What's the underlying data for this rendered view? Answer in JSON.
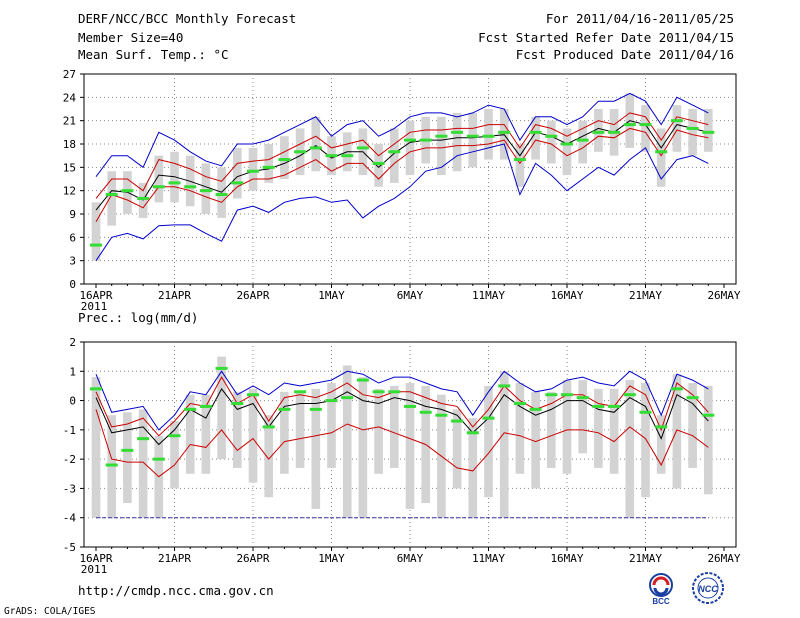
{
  "header": {
    "title": "DERF/NCC/BCC Monthly Forecast",
    "member_size": "Member Size=40",
    "variable": "Mean Surf. Temp.: °C",
    "period": "For 2011/04/16-2011/05/25",
    "start_date": "Fcst Started Refer Date 2011/04/15",
    "produced_date": "Fcst Produced Date 2011/04/16"
  },
  "footer": {
    "url": "http://cmdp.ncc.cma.gov.cn",
    "credit": "GrADS: COLA/IGES",
    "logo_bcc": "BCC",
    "logo_ncc": "NCC"
  },
  "chart_data": [
    {
      "type": "line",
      "title": "Mean Surf. Temp.: °C",
      "ylim": [
        0,
        27
      ],
      "yticks": [
        0,
        3,
        6,
        9,
        12,
        15,
        18,
        21,
        24,
        27
      ],
      "xtick_labels": [
        "16APR",
        "21APR",
        "26APR",
        "1MAY",
        "6MAY",
        "11MAY",
        "16MAY",
        "21MAY",
        "26MAY"
      ],
      "xtick_days": [
        0,
        5,
        10,
        15,
        20,
        25,
        30,
        35,
        40
      ],
      "year_label": "2011",
      "x": [
        0,
        1,
        2,
        3,
        4,
        5,
        6,
        7,
        8,
        9,
        10,
        11,
        12,
        13,
        14,
        15,
        16,
        17,
        18,
        19,
        20,
        21,
        22,
        23,
        24,
        25,
        26,
        27,
        28,
        29,
        30,
        31,
        32,
        33,
        34,
        35,
        36,
        37,
        38,
        39
      ],
      "series": [
        {
          "name": "max",
          "color": "#0000cc",
          "values": [
            13.8,
            16.5,
            16.5,
            15,
            19.5,
            18.5,
            17,
            15.8,
            15.2,
            18,
            18,
            18.5,
            19.5,
            20.5,
            21.5,
            19,
            20.5,
            21,
            19,
            20,
            21.5,
            22,
            22,
            21.5,
            22,
            23,
            22.5,
            18.5,
            21.5,
            21.5,
            20.5,
            21.5,
            23.5,
            23.5,
            24.5,
            23.5,
            20.5,
            24,
            23,
            22
          ]
        },
        {
          "name": "p90",
          "color": "#cc0000",
          "values": [
            11,
            13.5,
            13.5,
            12,
            16,
            15.5,
            14.8,
            13.8,
            13.2,
            15.5,
            15.8,
            16,
            17,
            18,
            19,
            17.5,
            18,
            18.5,
            16.5,
            18,
            19.5,
            19.8,
            19.8,
            20,
            20,
            20.5,
            20.5,
            17.5,
            20.5,
            20,
            19,
            20,
            21,
            20.5,
            22,
            21.5,
            18.5,
            21.5,
            21,
            20.5
          ]
        },
        {
          "name": "mean",
          "color": "#000000",
          "values": [
            9.5,
            12,
            11.8,
            10.8,
            14,
            13.8,
            13.2,
            12.5,
            11.8,
            13.8,
            14.5,
            14.8,
            15.5,
            16.5,
            17.8,
            16.2,
            17,
            17,
            15,
            16.8,
            18.2,
            18.5,
            18.5,
            18.8,
            18.8,
            19,
            19.2,
            16.5,
            19.5,
            19,
            18,
            19,
            20,
            19.5,
            21,
            20.5,
            17.5,
            20.5,
            20,
            19.5
          ]
        },
        {
          "name": "p10",
          "color": "#cc0000",
          "values": [
            8,
            11.5,
            10.8,
            9.8,
            12.5,
            12.5,
            12,
            11.2,
            10.5,
            12.5,
            13.5,
            13.5,
            14,
            15,
            16,
            14.5,
            15.5,
            15.5,
            13.5,
            15.5,
            17,
            17.5,
            17.5,
            17.8,
            17.8,
            18,
            18.5,
            15.5,
            18.5,
            18,
            16.5,
            17.5,
            19,
            18.8,
            20,
            19.5,
            16.5,
            19.8,
            19.2,
            18.8
          ]
        },
        {
          "name": "min",
          "color": "#0000cc",
          "values": [
            3,
            6,
            6.5,
            5.8,
            7.5,
            7.6,
            7.6,
            6.5,
            5.5,
            9.5,
            10,
            9.2,
            10.5,
            11,
            11.2,
            10.5,
            10.8,
            8.5,
            10,
            11,
            12.5,
            14.5,
            15,
            16.5,
            17,
            17.5,
            18,
            11.5,
            15.5,
            14,
            12,
            13.5,
            15,
            14,
            16,
            17.5,
            13.5,
            16,
            16.5,
            15.5
          ]
        }
      ],
      "box_series": {
        "name": "member spread",
        "color": "#d3d3d3",
        "lows": [
          3,
          7.5,
          9,
          8.5,
          10.5,
          10.5,
          10,
          9,
          8.5,
          11,
          12,
          13,
          13.5,
          14,
          14.5,
          14,
          14.5,
          14,
          12.5,
          13,
          14,
          15.5,
          14,
          14.5,
          15,
          16,
          16,
          12.5,
          16,
          15.5,
          14,
          15.5,
          17,
          16.5,
          17.5,
          17,
          12.5,
          17,
          16.5,
          17
        ]
      },
      "box_highs": [
        10.5,
        14.5,
        14.5,
        13,
        16.5,
        17,
        16.5,
        15.5,
        15,
        17.5,
        17.5,
        18,
        19,
        20,
        21.5,
        19,
        19.5,
        20,
        18,
        20,
        21,
        21.5,
        21.5,
        22,
        22,
        22.5,
        22.5,
        18,
        21.5,
        21,
        20,
        21,
        22.5,
        22.5,
        24.5,
        23,
        20,
        23,
        22.5,
        22.5
      ],
      "control_run": {
        "name": "control",
        "color": "#33dd33",
        "values": [
          5,
          11.5,
          12,
          11,
          12.5,
          13,
          12.5,
          12,
          11.5,
          13,
          14.5,
          15,
          16,
          17,
          17.5,
          16.5,
          16.5,
          17.5,
          15.5,
          17,
          18.5,
          18.5,
          19,
          19.5,
          19,
          19,
          19.5,
          16,
          19.5,
          19,
          18,
          18.5,
          19.5,
          19.5,
          20.5,
          20.5,
          17,
          21,
          20,
          19.5
        ]
      }
    },
    {
      "type": "line",
      "title": "Prec.: log(mm/d)",
      "ylim": [
        -5,
        2
      ],
      "yticks": [
        -5,
        -4,
        -3,
        -2,
        -1,
        0,
        1,
        2
      ],
      "xtick_labels": [
        "16APR",
        "21APR",
        "26APR",
        "1MAY",
        "6MAY",
        "11MAY",
        "16MAY",
        "21MAY",
        "26MAY"
      ],
      "xtick_days": [
        0,
        5,
        10,
        15,
        20,
        25,
        30,
        35,
        40
      ],
      "year_label": "2011",
      "x": [
        0,
        1,
        2,
        3,
        4,
        5,
        6,
        7,
        8,
        9,
        10,
        11,
        12,
        13,
        14,
        15,
        16,
        17,
        18,
        19,
        20,
        21,
        22,
        23,
        24,
        25,
        26,
        27,
        28,
        29,
        30,
        31,
        32,
        33,
        34,
        35,
        36,
        37,
        38,
        39
      ],
      "series": [
        {
          "name": "max",
          "color": "#0000cc",
          "values": [
            0.9,
            -0.4,
            -0.3,
            -0.2,
            -1,
            -0.5,
            0.3,
            0.2,
            1,
            0.2,
            0.5,
            0.2,
            0.6,
            0.5,
            0.6,
            0.7,
            1,
            0.9,
            0.6,
            0.8,
            0.8,
            0.6,
            0.4,
            0.3,
            -0.5,
            0.3,
            1,
            0.6,
            0.3,
            0.4,
            0.7,
            0.8,
            0.6,
            0.5,
            1,
            0.7,
            -0.5,
            0.9,
            0.7,
            0.4
          ]
        },
        {
          "name": "p90",
          "color": "#cc0000",
          "values": [
            0.3,
            -0.9,
            -0.8,
            -0.6,
            -1.2,
            -0.7,
            -0.1,
            -0.2,
            0.8,
            -0.1,
            0.2,
            -0.7,
            0.1,
            0.2,
            0.1,
            0.3,
            0.6,
            0.2,
            0.1,
            0.3,
            0.3,
            0.1,
            -0.1,
            -0.2,
            -0.9,
            -0.3,
            0.5,
            0,
            -0.3,
            -0.1,
            0.2,
            0.2,
            -0.1,
            -0.2,
            0.5,
            0.2,
            -1,
            0.6,
            0.2,
            -0.4
          ]
        },
        {
          "name": "mean",
          "color": "#000000",
          "values": [
            0.1,
            -1.1,
            -1,
            -0.9,
            -1.5,
            -1,
            -0.3,
            -0.6,
            0.4,
            -0.3,
            -0.1,
            -0.9,
            -0.2,
            -0.1,
            -0.1,
            0,
            0.3,
            0,
            -0.1,
            0.1,
            0,
            -0.2,
            -0.3,
            -0.5,
            -1.1,
            -0.6,
            0.2,
            -0.2,
            -0.5,
            -0.3,
            0,
            0,
            -0.3,
            -0.4,
            0.1,
            -0.2,
            -1.3,
            0.2,
            -0.1,
            -0.7
          ]
        },
        {
          "name": "p10",
          "color": "#cc0000",
          "values": [
            -0.3,
            -2,
            -2.1,
            -2.1,
            -2.6,
            -2.2,
            -1.5,
            -1.6,
            -1,
            -1.7,
            -1.3,
            -2,
            -1.4,
            -1.3,
            -1.2,
            -1.1,
            -0.8,
            -1,
            -0.9,
            -1.1,
            -1.3,
            -1.5,
            -1.9,
            -2.3,
            -2.4,
            -1.8,
            -1.1,
            -1.2,
            -1.4,
            -1.2,
            -1,
            -1,
            -1.1,
            -1.4,
            -0.9,
            -1.3,
            -2.2,
            -1,
            -1.2,
            -1.6
          ]
        },
        {
          "name": "min",
          "color": "#3333aa",
          "values": [
            -4,
            -4,
            -4,
            -4,
            -4,
            -4,
            -4,
            -4,
            -4,
            -4,
            -4,
            -4,
            -4,
            -4,
            -4,
            -4,
            -4,
            -4,
            -4,
            -4,
            -4,
            -4,
            -4,
            -4,
            -4,
            -4,
            -4,
            -4,
            -4,
            -4,
            -4,
            -4,
            -4,
            -4,
            -4,
            -4,
            -4,
            -4,
            -4,
            -4
          ]
        }
      ],
      "box_series": {
        "name": "member spread",
        "color": "#d3d3d3",
        "lows": [
          -4,
          -4,
          -3.5,
          -4,
          -4,
          -3,
          -2.5,
          -2.5,
          -2,
          -2.3,
          -2.8,
          -3.3,
          -2.5,
          -2.3,
          -3.7,
          -2.3,
          -4,
          -4,
          -2.5,
          -2.3,
          -3.7,
          -3.5,
          -4,
          -3,
          -4,
          -3.3,
          -4,
          -2.5,
          -3,
          -2.3,
          -2.5,
          -1.8,
          -2.3,
          -2.5,
          -4,
          -3.3,
          -2.5,
          -3,
          -2.3,
          -3.2
        ]
      },
      "box_highs": [
        0.8,
        -0.5,
        -0.4,
        -0.3,
        -1.2,
        -0.7,
        0.2,
        0.2,
        1.5,
        0.3,
        0.4,
        -0.5,
        0.3,
        0.3,
        0.4,
        0.6,
        1.2,
        0.8,
        0.4,
        0.5,
        0.6,
        0.5,
        0.2,
        -0.3,
        -0.6,
        0.5,
        1,
        0.6,
        0.3,
        0.3,
        0.7,
        0.7,
        0.4,
        0.4,
        0.7,
        0.6,
        -0.5,
        0.9,
        0.6,
        0.5
      ],
      "control_run": {
        "name": "control",
        "color": "#33dd33",
        "values": [
          0.4,
          -2.2,
          -1.7,
          -1.3,
          -2,
          -1.2,
          -0.3,
          -0.2,
          1.1,
          -0.1,
          0.2,
          -0.9,
          -0.3,
          0.3,
          -0.3,
          0,
          0.1,
          0.7,
          0.3,
          0.3,
          -0.2,
          -0.4,
          -0.5,
          -0.7,
          -1.1,
          -0.6,
          0.5,
          -0.1,
          -0.3,
          0.2,
          0.2,
          0.1,
          -0.2,
          -0.2,
          0.2,
          -0.4,
          -0.9,
          0.4,
          0.1,
          -0.5
        ]
      }
    }
  ]
}
